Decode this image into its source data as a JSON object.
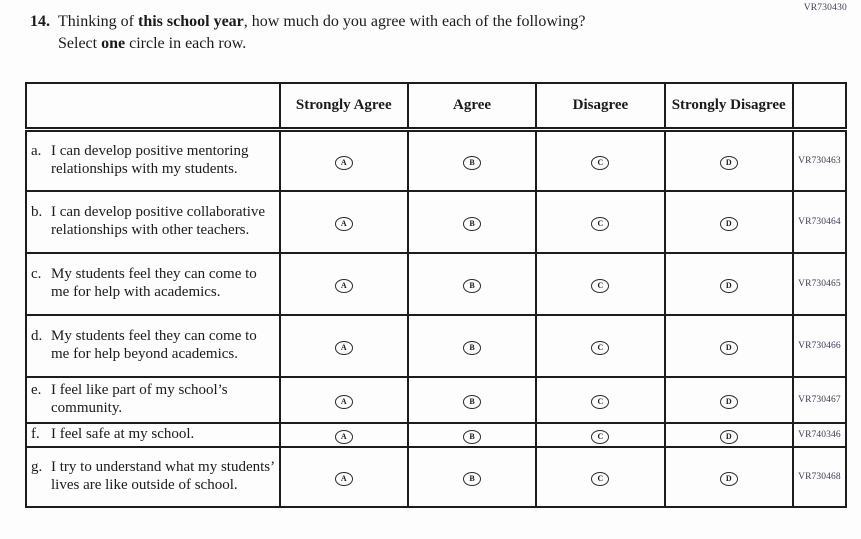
{
  "colors": {
    "ink": "#1b1b1b",
    "code_ink": "#3d3d52"
  },
  "header_code": "VR730430",
  "question": {
    "number": "14.",
    "line1_pre": "Thinking of ",
    "line1_bold": "this school year",
    "line1_post": ", how much do you agree with each of the following?",
    "line2_pre": "Select ",
    "line2_bold": "one",
    "line2_post": " circle in each row."
  },
  "table": {
    "columns": [
      "Strongly Agree",
      "Agree",
      "Disagree",
      "Strongly Disagree"
    ],
    "options": [
      "A",
      "B",
      "C",
      "D"
    ],
    "rows": [
      {
        "letter": "a.",
        "text": "I can develop positive mentoring relationships with my students.",
        "code": "VR730463"
      },
      {
        "letter": "b.",
        "text": "I can develop positive collaborative relationships with other teachers.",
        "code": "VR730464"
      },
      {
        "letter": "c.",
        "text": "My students feel they can come to me for help with academics.",
        "code": "VR730465"
      },
      {
        "letter": "d.",
        "text": "My students feel they can come to me for help beyond academics.",
        "code": "VR730466"
      },
      {
        "letter": "e.",
        "text": "I feel like part of my school’s community.",
        "code": "VR730467"
      },
      {
        "letter": "f.",
        "text": "I feel safe at my school.",
        "code": "VR740346"
      },
      {
        "letter": "g.",
        "text": "I try to understand what my students’ lives are like outside of school.",
        "code": "VR730468"
      }
    ]
  }
}
